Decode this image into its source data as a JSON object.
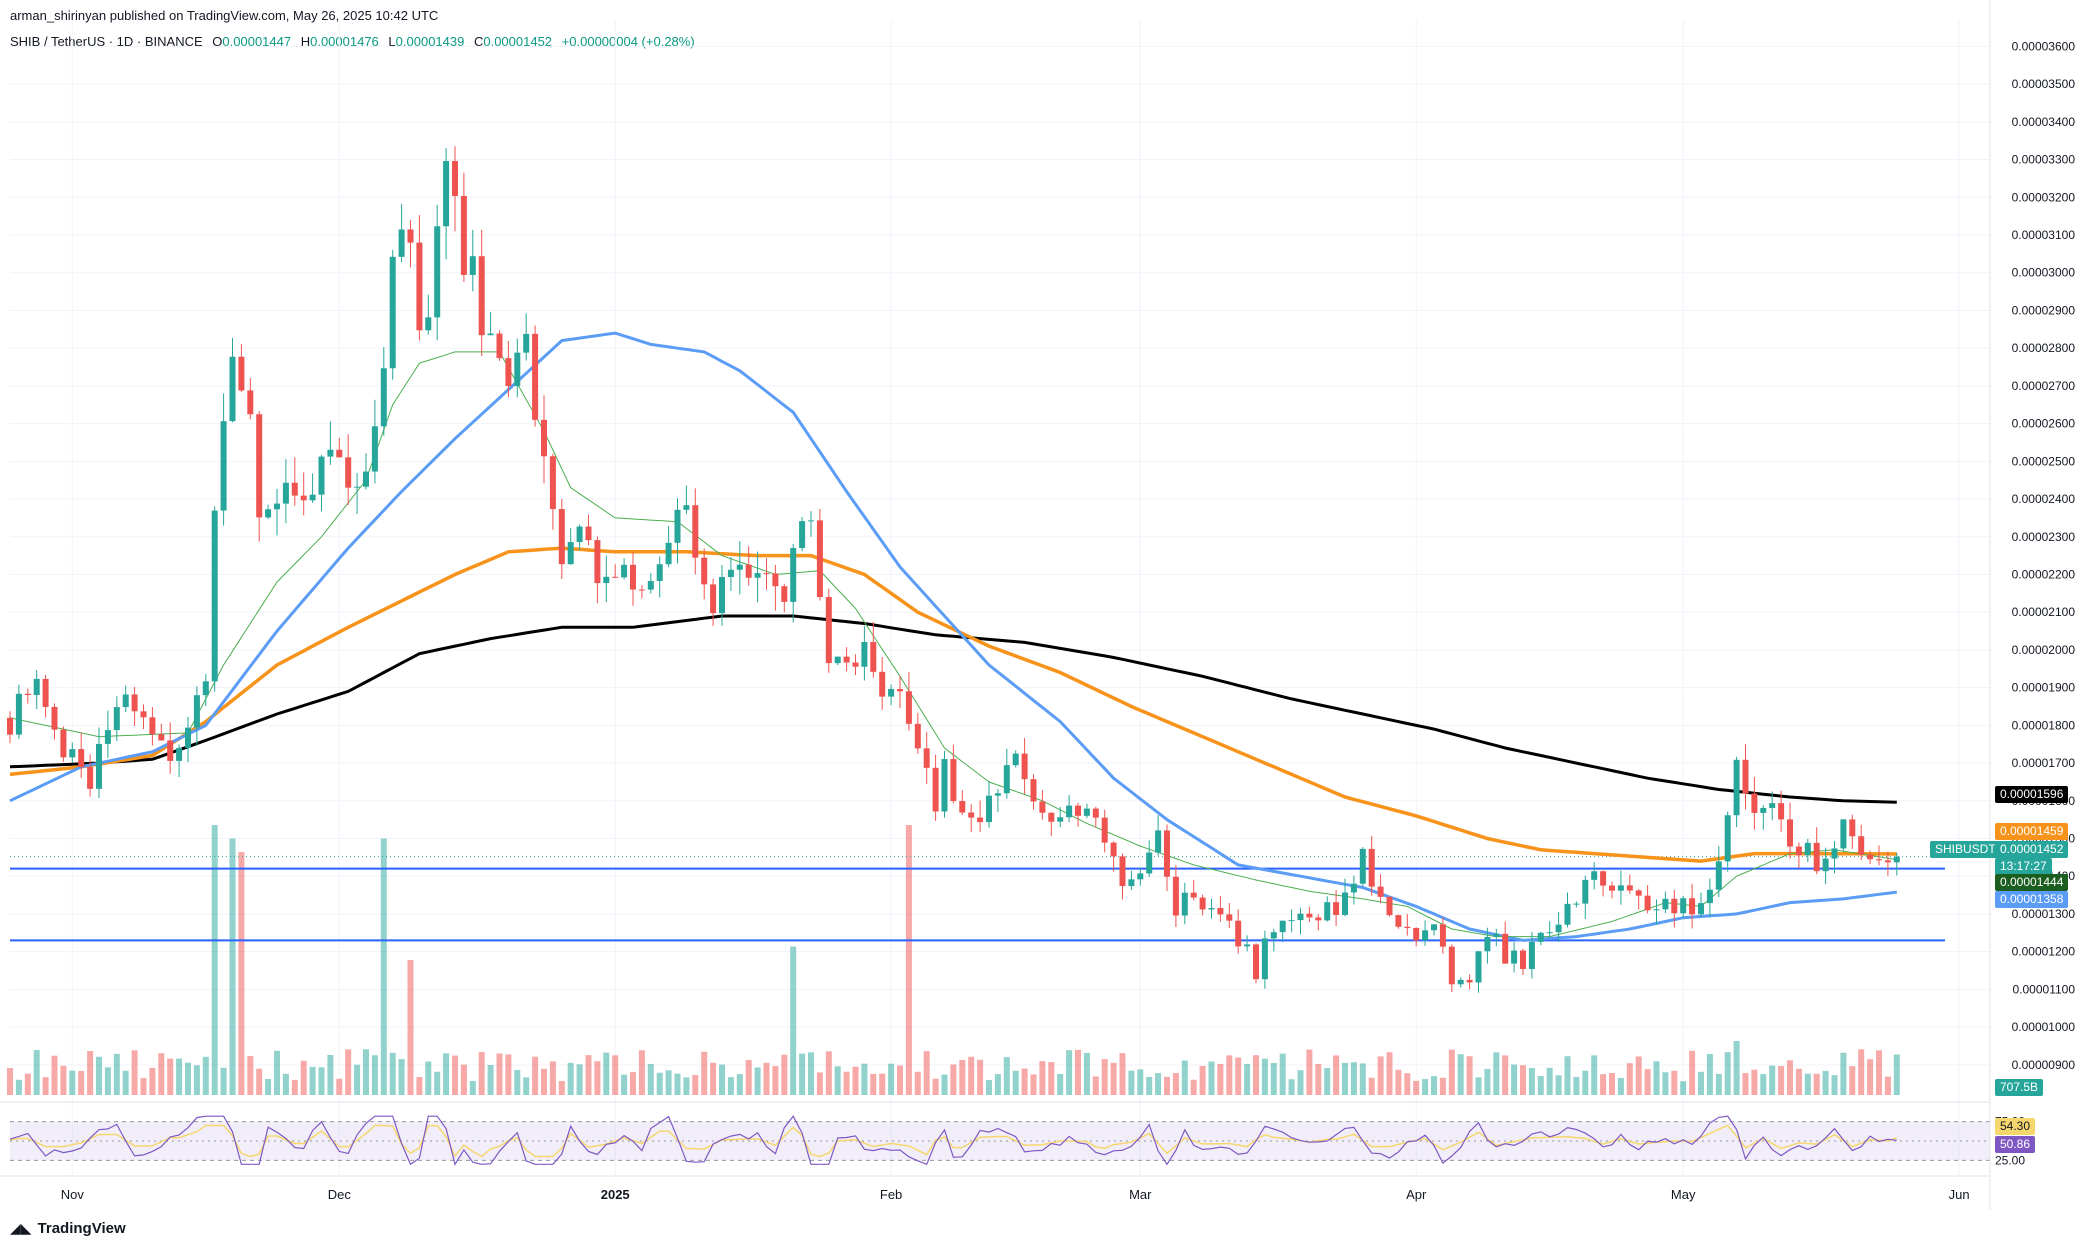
{
  "publisher_line": "arman_shirinyan published on TradingView.com, May 26, 2025 10:42 UTC",
  "symbol": {
    "name": "SHIB / TetherUS · 1D · BINANCE",
    "open_label": "O",
    "open": "0.00001447",
    "high_label": "H",
    "high": "0.00001476",
    "low_label": "L",
    "low": "0.00001439",
    "close_label": "C",
    "close": "0.00001452",
    "change": "+0.00000004 (+0.28%)"
  },
  "badges": {
    "ma200": "0.00001596",
    "ma100": "0.00001459",
    "ticker": "SHIBUSDT",
    "last_price": "0.00001452",
    "countdown": "13:17:27",
    "ma20": "0.00001444",
    "ma50": "0.00001358",
    "volume": "707.5B",
    "rsi_ma": "54.30",
    "rsi": "50.86"
  },
  "colors": {
    "up": "#26a69a",
    "down": "#ef5350",
    "ma20": "#4caf50",
    "ma50": "#5b9cf6",
    "ma100": "#f7931a",
    "ma200": "#000000",
    "support": "#2962ff",
    "rsi_line": "#7e57c2",
    "rsi_ma": "#f5d76e"
  },
  "brand": "TradingView",
  "chart_data": {
    "type": "candlestick",
    "y_unit": "USDT",
    "ylim": [
      8.2e-06,
      3.67e-05
    ],
    "y_ticks": [
      "0.00003600",
      "0.00003500",
      "0.00003400",
      "0.00003300",
      "0.00003200",
      "0.00003100",
      "0.00003000",
      "0.00002900",
      "0.00002800",
      "0.00002700",
      "0.00002600",
      "0.00002500",
      "0.00002400",
      "0.00002300",
      "0.00002200",
      "0.00002100",
      "0.00002000",
      "0.00001900",
      "0.00001800",
      "0.00001700",
      "0.00001600",
      "0.00001500",
      "0.00001400",
      "0.00001300",
      "0.00001200",
      "0.00001100",
      "0.00001000",
      "0.00000900"
    ],
    "x_ticks": [
      "Nov",
      "Dec",
      "2025",
      "Feb",
      "Mar",
      "Apr",
      "May",
      "Jun"
    ],
    "x_tick_days": [
      7,
      37,
      68,
      99,
      127,
      158,
      188,
      219
    ],
    "days_total": 222,
    "support_levels": [
      14.2,
      12.3
    ],
    "candle_keypoints": [
      [
        0,
        18.2
      ],
      [
        3,
        18.8
      ],
      [
        7,
        17.0
      ],
      [
        9,
        16.7
      ],
      [
        13,
        18.8
      ],
      [
        17,
        17.2
      ],
      [
        20,
        18.0
      ],
      [
        22,
        19.5
      ],
      [
        23,
        24.3
      ],
      [
        25,
        28.0
      ],
      [
        27,
        26.0
      ],
      [
        28,
        23.5
      ],
      [
        31,
        24.7
      ],
      [
        34,
        24.1
      ],
      [
        36,
        25.7
      ],
      [
        39,
        24.3
      ],
      [
        41,
        25.5
      ],
      [
        43,
        30.8
      ],
      [
        45,
        30.3
      ],
      [
        46,
        28.6
      ],
      [
        47,
        29.2
      ],
      [
        49,
        32.9
      ],
      [
        51,
        30.5
      ],
      [
        52,
        31.0
      ],
      [
        53,
        28.8
      ],
      [
        55,
        27.5
      ],
      [
        56,
        27.3
      ],
      [
        58,
        27.8
      ],
      [
        59,
        26.1
      ],
      [
        61,
        23.6
      ],
      [
        62,
        21.8
      ],
      [
        64,
        23.0
      ],
      [
        66,
        22.0
      ],
      [
        68,
        21.5
      ],
      [
        70,
        22.0
      ],
      [
        72,
        21.6
      ],
      [
        74,
        23.2
      ],
      [
        75,
        24.0
      ],
      [
        77,
        22.8
      ],
      [
        79,
        21.5
      ],
      [
        82,
        21.8
      ],
      [
        85,
        22.3
      ],
      [
        87,
        21.6
      ],
      [
        89,
        23.8
      ],
      [
        90,
        23.6
      ],
      [
        92,
        19.7
      ],
      [
        94,
        19.7
      ],
      [
        96,
        19.9
      ],
      [
        98,
        19.0
      ],
      [
        100,
        18.6
      ],
      [
        102,
        17.8
      ],
      [
        104,
        15.6
      ],
      [
        105,
        16.8
      ],
      [
        108,
        15.2
      ],
      [
        110,
        15.8
      ],
      [
        113,
        16.9
      ],
      [
        115,
        16.2
      ],
      [
        117,
        15.6
      ],
      [
        120,
        15.6
      ],
      [
        122,
        15.5
      ],
      [
        123,
        14.6
      ],
      [
        125,
        14.0
      ],
      [
        127,
        13.8
      ],
      [
        129,
        15.0
      ],
      [
        131,
        13.0
      ],
      [
        133,
        13.5
      ],
      [
        136,
        12.8
      ],
      [
        138,
        12.4
      ],
      [
        140,
        11.5
      ],
      [
        141,
        12.2
      ],
      [
        143,
        12.8
      ],
      [
        145,
        13.1
      ],
      [
        147,
        12.9
      ],
      [
        150,
        13.3
      ],
      [
        152,
        14.4
      ],
      [
        154,
        13.5
      ],
      [
        156,
        12.6
      ],
      [
        158,
        12.4
      ],
      [
        160,
        12.8
      ],
      [
        162,
        11.4
      ],
      [
        164,
        11.2
      ],
      [
        166,
        12.6
      ],
      [
        168,
        11.9
      ],
      [
        170,
        11.8
      ],
      [
        172,
        12.3
      ],
      [
        174,
        12.9
      ],
      [
        176,
        13.6
      ],
      [
        178,
        14.0
      ],
      [
        180,
        13.5
      ],
      [
        182,
        13.9
      ],
      [
        184,
        13.4
      ],
      [
        186,
        13.2
      ],
      [
        188,
        13.2
      ],
      [
        190,
        13.1
      ],
      [
        192,
        14.3
      ],
      [
        194,
        16.9
      ],
      [
        196,
        15.8
      ],
      [
        198,
        16.2
      ],
      [
        200,
        15.0
      ],
      [
        202,
        14.7
      ],
      [
        204,
        14.2
      ],
      [
        206,
        15.2
      ],
      [
        208,
        14.3
      ],
      [
        210,
        14.5
      ],
      [
        212,
        14.52
      ]
    ],
    "ma20_keypoints": [
      [
        0,
        18.2
      ],
      [
        10,
        17.7
      ],
      [
        20,
        17.8
      ],
      [
        24,
        19.6
      ],
      [
        30,
        21.8
      ],
      [
        35,
        23.0
      ],
      [
        40,
        24.5
      ],
      [
        43,
        26.5
      ],
      [
        46,
        27.6
      ],
      [
        50,
        27.9
      ],
      [
        55,
        27.9
      ],
      [
        60,
        25.8
      ],
      [
        63,
        24.3
      ],
      [
        68,
        23.5
      ],
      [
        75,
        23.4
      ],
      [
        80,
        22.5
      ],
      [
        86,
        22.0
      ],
      [
        91,
        22.1
      ],
      [
        95,
        21.1
      ],
      [
        100,
        19.3
      ],
      [
        105,
        17.4
      ],
      [
        110,
        16.5
      ],
      [
        116,
        16.0
      ],
      [
        121,
        15.4
      ],
      [
        127,
        14.8
      ],
      [
        133,
        14.3
      ],
      [
        140,
        13.9
      ],
      [
        146,
        13.6
      ],
      [
        152,
        13.4
      ],
      [
        157,
        13.2
      ],
      [
        162,
        12.6
      ],
      [
        167,
        12.4
      ],
      [
        173,
        12.4
      ],
      [
        180,
        12.8
      ],
      [
        186,
        13.3
      ],
      [
        190,
        13.2
      ],
      [
        194,
        14.0
      ],
      [
        200,
        14.6
      ],
      [
        205,
        14.7
      ],
      [
        212,
        14.44
      ]
    ],
    "ma50_keypoints": [
      [
        0,
        16.0
      ],
      [
        8,
        16.9
      ],
      [
        16,
        17.3
      ],
      [
        22,
        18.0
      ],
      [
        30,
        20.5
      ],
      [
        38,
        22.7
      ],
      [
        44,
        24.2
      ],
      [
        50,
        25.6
      ],
      [
        56,
        26.9
      ],
      [
        62,
        28.2
      ],
      [
        68,
        28.4
      ],
      [
        72,
        28.1
      ],
      [
        78,
        27.9
      ],
      [
        82,
        27.4
      ],
      [
        88,
        26.3
      ],
      [
        94,
        24.2
      ],
      [
        100,
        22.2
      ],
      [
        110,
        19.6
      ],
      [
        118,
        18.1
      ],
      [
        124,
        16.6
      ],
      [
        130,
        15.5
      ],
      [
        138,
        14.3
      ],
      [
        145,
        14.0
      ],
      [
        152,
        13.7
      ],
      [
        158,
        13.2
      ],
      [
        164,
        12.6
      ],
      [
        170,
        12.3
      ],
      [
        176,
        12.4
      ],
      [
        182,
        12.6
      ],
      [
        188,
        12.9
      ],
      [
        194,
        13.0
      ],
      [
        200,
        13.3
      ],
      [
        206,
        13.4
      ],
      [
        212,
        13.58
      ]
    ],
    "ma100_keypoints": [
      [
        0,
        16.7
      ],
      [
        8,
        16.9
      ],
      [
        16,
        17.2
      ],
      [
        22,
        18.1
      ],
      [
        30,
        19.6
      ],
      [
        38,
        20.6
      ],
      [
        44,
        21.3
      ],
      [
        50,
        22.0
      ],
      [
        56,
        22.6
      ],
      [
        62,
        22.7
      ],
      [
        68,
        22.6
      ],
      [
        76,
        22.6
      ],
      [
        84,
        22.5
      ],
      [
        90,
        22.5
      ],
      [
        96,
        22.0
      ],
      [
        102,
        21.0
      ],
      [
        110,
        20.1
      ],
      [
        118,
        19.4
      ],
      [
        126,
        18.5
      ],
      [
        134,
        17.7
      ],
      [
        142,
        16.9
      ],
      [
        150,
        16.1
      ],
      [
        158,
        15.6
      ],
      [
        166,
        15.0
      ],
      [
        172,
        14.7
      ],
      [
        178,
        14.6
      ],
      [
        184,
        14.5
      ],
      [
        190,
        14.4
      ],
      [
        196,
        14.6
      ],
      [
        202,
        14.6
      ],
      [
        212,
        14.59
      ]
    ],
    "ma200_keypoints": [
      [
        0,
        16.9
      ],
      [
        10,
        17.0
      ],
      [
        16,
        17.1
      ],
      [
        22,
        17.6
      ],
      [
        30,
        18.3
      ],
      [
        38,
        18.9
      ],
      [
        46,
        19.9
      ],
      [
        54,
        20.3
      ],
      [
        62,
        20.6
      ],
      [
        70,
        20.6
      ],
      [
        80,
        20.9
      ],
      [
        88,
        20.9
      ],
      [
        96,
        20.7
      ],
      [
        104,
        20.4
      ],
      [
        114,
        20.2
      ],
      [
        124,
        19.8
      ],
      [
        134,
        19.3
      ],
      [
        144,
        18.7
      ],
      [
        152,
        18.3
      ],
      [
        160,
        17.9
      ],
      [
        168,
        17.4
      ],
      [
        176,
        17.0
      ],
      [
        184,
        16.6
      ],
      [
        192,
        16.3
      ],
      [
        200,
        16.1
      ],
      [
        206,
        16.0
      ],
      [
        212,
        15.96
      ]
    ],
    "volume_spikes": [
      [
        23,
        1.0
      ],
      [
        25,
        0.95
      ],
      [
        26,
        0.9
      ],
      [
        42,
        0.95
      ],
      [
        101,
        1.0
      ],
      [
        88,
        0.55
      ],
      [
        45,
        0.5
      ],
      [
        194,
        0.2
      ],
      [
        0,
        0.1
      ]
    ],
    "rsi_levels": [
      75,
      25
    ],
    "rsi_last": 50.86,
    "rsi_ma_last": 54.3
  }
}
